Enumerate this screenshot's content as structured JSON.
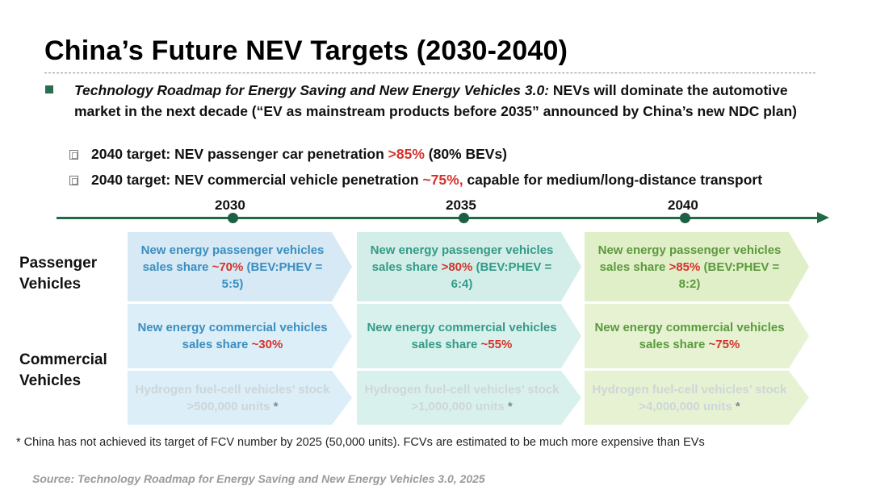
{
  "slide": {
    "title": "China’s Future NEV Targets (2030-2040)",
    "intro_italic": "Technology Roadmap for Energy Saving and New Energy Vehicles 3.0:",
    "intro_rest": " NEVs will dominate the automotive market in the next decade (“EV as mainstream products before 2035” announced by China’s new NDC plan)",
    "sub1_pre": "2040 target: NEV passenger car penetration ",
    "sub1_red": ">85%",
    "sub1_post": " (80% BEVs)",
    "sub2_pre": "2040 target: NEV commercial vehicle penetration ",
    "sub2_red": "~75%,",
    "sub2_post": " capable for medium/long-distance transport"
  },
  "timeline": {
    "years": [
      "2030",
      "2035",
      "2040"
    ]
  },
  "rows": {
    "passenger": "Passenger Vehicles",
    "commercial": "Commercial Vehicles"
  },
  "cards": {
    "p2030": {
      "pre": "New energy passenger vehicles sales share ",
      "red": "~70%",
      "post": " (BEV:PHEV = 5:5)"
    },
    "p2035": {
      "pre": "New energy passenger vehicles sales share ",
      "red": ">80%",
      "post": " (BEV:PHEV = 6:4)"
    },
    "p2040": {
      "pre": "New energy passenger vehicles sales share ",
      "red": ">85%",
      "post": " (BEV:PHEV = 8:2)"
    },
    "c2030": {
      "pre": "New energy commercial vehicles sales share ",
      "red": "~30%"
    },
    "c2035": {
      "pre": "New energy commercial vehicles sales share ",
      "red": "~55%"
    },
    "c2040": {
      "pre": "New energy commercial vehicles sales share ",
      "red": "~75%"
    },
    "h2030": {
      "text": "Hydrogen fuel-cell vehicles’ stock >500,000 units ",
      "star": "*"
    },
    "h2035": {
      "text": "Hydrogen fuel-cell vehicles’ stock >1,000,000 units ",
      "star": "*"
    },
    "h2040": {
      "text": "Hydrogen fuel-cell vehicles’ stock >4,000,000 units ",
      "star": "*"
    }
  },
  "footnote": "* China has not achieved its target of FCV number by 2025 (50,000 units). FCVs are estimated to be much more expensive than EVs",
  "source": "Source: Technology Roadmap for Energy Saving and New Energy Vehicles 3.0, 2025",
  "colors": {
    "accent_green": "#1f6b45",
    "red": "#d6322c",
    "blue": "#3b8ec0",
    "teal": "#339a88",
    "green": "#5a9a3c"
  }
}
